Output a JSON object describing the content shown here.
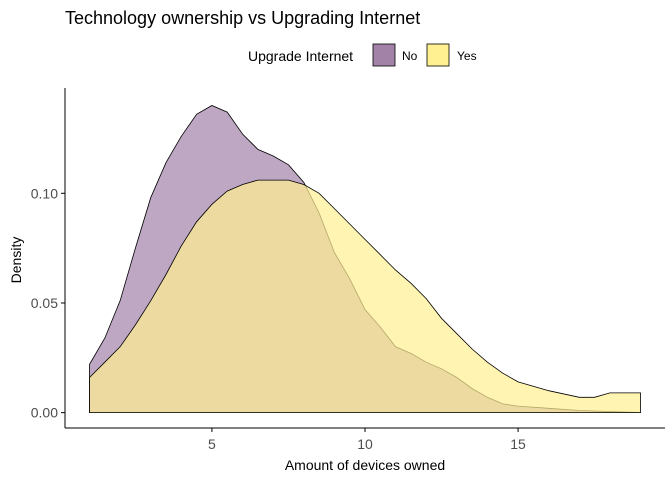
{
  "chart_data": {
    "type": "area",
    "title": "Technology ownership vs Upgrading Internet",
    "xlabel": "Amount of devices owned",
    "ylabel": "Density",
    "xlim": [
      0.2,
      19.8
    ],
    "ylim": [
      -0.007,
      0.148
    ],
    "x_ticks": [
      5,
      10,
      15
    ],
    "x_tick_labels": [
      "5",
      "10",
      "15"
    ],
    "y_ticks": [
      0,
      0.05,
      0.1
    ],
    "y_tick_labels": [
      "0.00",
      "0.05",
      "0.10"
    ],
    "grid": false,
    "legend": {
      "title": "Upgrade Internet",
      "position": "top",
      "entries": [
        "No",
        "Yes"
      ]
    },
    "series": [
      {
        "name": "No",
        "color": "#A382A8",
        "points": [
          [
            1,
            0.022
          ],
          [
            1.5,
            0.034
          ],
          [
            2,
            0.051
          ],
          [
            2.5,
            0.075
          ],
          [
            3,
            0.098
          ],
          [
            3.5,
            0.114
          ],
          [
            4,
            0.126
          ],
          [
            4.5,
            0.136
          ],
          [
            5,
            0.14
          ],
          [
            5.5,
            0.137
          ],
          [
            6,
            0.127
          ],
          [
            6.5,
            0.12
          ],
          [
            7,
            0.117
          ],
          [
            7.5,
            0.113
          ],
          [
            8,
            0.105
          ],
          [
            8.5,
            0.091
          ],
          [
            9,
            0.073
          ],
          [
            9.5,
            0.061
          ],
          [
            10,
            0.047
          ],
          [
            10.5,
            0.039
          ],
          [
            11,
            0.03
          ],
          [
            11.5,
            0.027
          ],
          [
            12,
            0.023
          ],
          [
            12.5,
            0.02
          ],
          [
            13,
            0.016
          ],
          [
            13.5,
            0.011
          ],
          [
            14,
            0.007
          ],
          [
            14.5,
            0.004
          ],
          [
            15,
            0.003
          ],
          [
            16,
            0.002
          ],
          [
            17,
            0.001
          ],
          [
            18,
            0.0005
          ],
          [
            19,
            0
          ]
        ]
      },
      {
        "name": "Yes",
        "color": "#FFF091",
        "points": [
          [
            1,
            0.016
          ],
          [
            1.5,
            0.023
          ],
          [
            2,
            0.03
          ],
          [
            2.5,
            0.04
          ],
          [
            3,
            0.051
          ],
          [
            3.5,
            0.063
          ],
          [
            4,
            0.076
          ],
          [
            4.5,
            0.087
          ],
          [
            5,
            0.095
          ],
          [
            5.5,
            0.101
          ],
          [
            6,
            0.104
          ],
          [
            6.5,
            0.106
          ],
          [
            7,
            0.106
          ],
          [
            7.5,
            0.106
          ],
          [
            8,
            0.104
          ],
          [
            8.5,
            0.1
          ],
          [
            9,
            0.093
          ],
          [
            9.5,
            0.086
          ],
          [
            10,
            0.079
          ],
          [
            10.5,
            0.072
          ],
          [
            11,
            0.065
          ],
          [
            11.5,
            0.059
          ],
          [
            12,
            0.052
          ],
          [
            12.5,
            0.043
          ],
          [
            13,
            0.036
          ],
          [
            13.5,
            0.029
          ],
          [
            14,
            0.023
          ],
          [
            14.5,
            0.018
          ],
          [
            15,
            0.014
          ],
          [
            16,
            0.01
          ],
          [
            17,
            0.007
          ],
          [
            17.5,
            0.007
          ],
          [
            18,
            0.009
          ],
          [
            19,
            0.009
          ]
        ]
      }
    ]
  }
}
